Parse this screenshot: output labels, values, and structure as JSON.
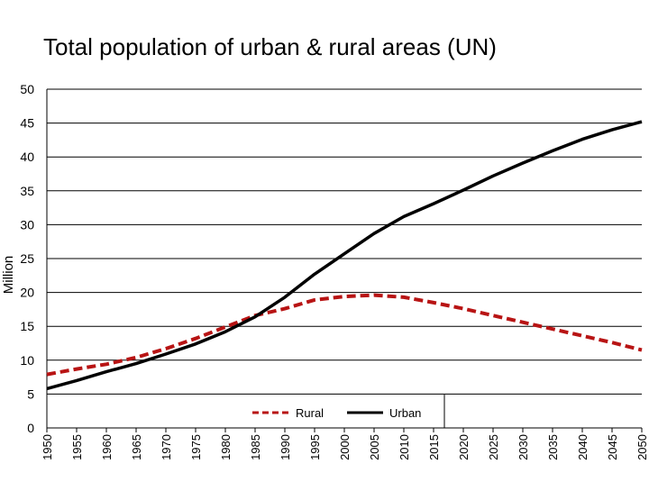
{
  "chart_data": {
    "type": "line",
    "title": "Total population of urban & rural areas (UN)",
    "xlabel": "",
    "ylabel": "Million",
    "x": [
      1950,
      1955,
      1960,
      1965,
      1970,
      1975,
      1980,
      1985,
      1990,
      1995,
      2000,
      2005,
      2010,
      2015,
      2020,
      2025,
      2030,
      2035,
      2040,
      2045,
      2050
    ],
    "ylim": [
      0,
      50
    ],
    "yticks": [
      0,
      5,
      10,
      15,
      20,
      25,
      30,
      35,
      40,
      45,
      50
    ],
    "grid": true,
    "legend": "bottom-center",
    "series": [
      {
        "name": "Rural",
        "style": "dashed",
        "color": "#b81414",
        "values": [
          7.9,
          8.7,
          9.4,
          10.4,
          11.7,
          13.2,
          14.9,
          16.6,
          17.6,
          18.9,
          19.4,
          19.6,
          19.3,
          18.5,
          17.6,
          16.6,
          15.6,
          14.6,
          13.6,
          12.6,
          11.5
        ]
      },
      {
        "name": "Urban",
        "style": "solid",
        "color": "#000000",
        "values": [
          5.8,
          7.0,
          8.3,
          9.5,
          10.9,
          12.4,
          14.2,
          16.4,
          19.3,
          22.7,
          25.7,
          28.7,
          31.2,
          33.1,
          35.1,
          37.2,
          39.1,
          40.9,
          42.6,
          44.0,
          45.2
        ]
      }
    ]
  }
}
